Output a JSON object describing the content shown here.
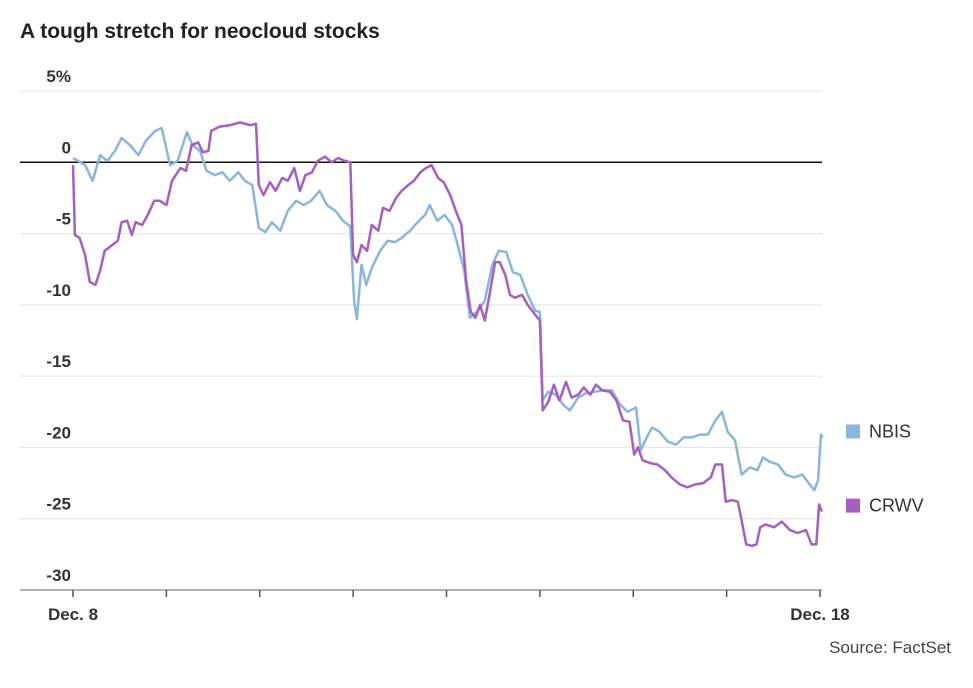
{
  "chart_data": {
    "type": "line",
    "title": "A tough stretch for neocloud stocks",
    "source": "Source: FactSet",
    "xlim": [
      0,
      8
    ],
    "xticks": [
      0,
      1,
      2,
      3,
      4,
      5,
      6,
      7,
      8
    ],
    "xlabels": [
      {
        "value": 0,
        "label": "Dec. 8"
      },
      {
        "value": 8,
        "label": "Dec. 18"
      }
    ],
    "ylim": [
      -30,
      5
    ],
    "yticks": [
      {
        "value": 5,
        "label": "5%"
      },
      0,
      -5,
      -10,
      -15,
      -20,
      -25,
      -30
    ],
    "grid": true,
    "series": [
      {
        "name": "NBIS",
        "color": "#8ab6de",
        "x": [
          0,
          0.13,
          0.21,
          0.29,
          0.37,
          0.45,
          0.52,
          0.61,
          0.7,
          0.78,
          0.88,
          0.95,
          1.04,
          1.12,
          1.22,
          1.28,
          1.36,
          1.43,
          1.52,
          1.6,
          1.68,
          1.77,
          1.84,
          1.92,
          1.99,
          2.06,
          2.13,
          2.22,
          2.3,
          2.39,
          2.47,
          2.55,
          2.64,
          2.72,
          2.81,
          2.89,
          2.97,
          3.01,
          3.04,
          3.09,
          3.14,
          3.2,
          3.29,
          3.37,
          3.45,
          3.52,
          3.61,
          3.69,
          3.77,
          3.82,
          3.9,
          3.98,
          4.06,
          4.12,
          4.19,
          4.25,
          4.34,
          4.41,
          4.49,
          4.56,
          4.64,
          4.71,
          4.79,
          4.87,
          4.95,
          5.0,
          5.03,
          5.09,
          5.17,
          5.25,
          5.32,
          5.41,
          5.49,
          5.58,
          5.67,
          5.77,
          5.86,
          5.94,
          6.03,
          6.08,
          6.13,
          6.2,
          6.28,
          6.37,
          6.46,
          6.54,
          6.63,
          6.71,
          6.8,
          6.88,
          6.95,
          7.01,
          7.09,
          7.16,
          7.25,
          7.33,
          7.39,
          7.46,
          7.55,
          7.63,
          7.72,
          7.81,
          7.89,
          7.94,
          7.98,
          8.01,
          8.03
        ],
        "values": [
          0.3,
          -0.2,
          -1.3,
          0.5,
          0.1,
          0.8,
          1.7,
          1.2,
          0.5,
          1.5,
          2.2,
          2.4,
          -0.2,
          0.1,
          2.1,
          1.2,
          0.8,
          -0.6,
          -0.9,
          -0.7,
          -1.3,
          -0.7,
          -1.3,
          -1.6,
          -4.6,
          -4.9,
          -4.2,
          -4.8,
          -3.4,
          -2.7,
          -3.0,
          -2.7,
          -2.0,
          -3.0,
          -3.4,
          -4.1,
          -4.5,
          -9.7,
          -11.0,
          -7.2,
          -8.6,
          -7.4,
          -6.2,
          -5.5,
          -5.6,
          -5.3,
          -4.8,
          -4.2,
          -3.7,
          -3.0,
          -4.1,
          -3.7,
          -4.4,
          -5.8,
          -7.6,
          -10.9,
          -10.4,
          -9.7,
          -7.2,
          -6.2,
          -6.3,
          -7.7,
          -7.9,
          -9.3,
          -10.4,
          -10.5,
          -16.7,
          -16.1,
          -16.3,
          -17.0,
          -17.4,
          -16.5,
          -16.2,
          -16.1,
          -16.0,
          -16.0,
          -17.0,
          -17.5,
          -17.2,
          -20.2,
          -19.5,
          -18.6,
          -18.9,
          -19.6,
          -19.8,
          -19.3,
          -19.3,
          -19.1,
          -19.1,
          -18.1,
          -17.5,
          -18.9,
          -19.5,
          -21.9,
          -21.4,
          -21.6,
          -20.7,
          -21.0,
          -21.2,
          -21.9,
          -22.1,
          -21.9,
          -22.6,
          -23.0,
          -22.3,
          -19.1,
          -19.3
        ]
      },
      {
        "name": "CRWV",
        "color": "#a55fc0",
        "x": [
          0,
          0.02,
          0.07,
          0.13,
          0.18,
          0.24,
          0.29,
          0.34,
          0.42,
          0.48,
          0.52,
          0.58,
          0.63,
          0.67,
          0.74,
          0.8,
          0.87,
          0.93,
          1.0,
          1.06,
          1.15,
          1.21,
          1.27,
          1.34,
          1.39,
          1.45,
          1.48,
          1.57,
          1.68,
          1.79,
          1.9,
          1.96,
          1.99,
          2.04,
          2.11,
          2.17,
          2.24,
          2.3,
          2.37,
          2.43,
          2.49,
          2.56,
          2.62,
          2.7,
          2.77,
          2.84,
          2.91,
          2.97,
          3.0,
          3.04,
          3.09,
          3.15,
          3.2,
          3.27,
          3.32,
          3.39,
          3.46,
          3.52,
          3.59,
          3.65,
          3.72,
          3.78,
          3.84,
          3.91,
          3.97,
          4.04,
          4.1,
          4.16,
          4.21,
          4.26,
          4.31,
          4.36,
          4.41,
          4.46,
          4.52,
          4.57,
          4.63,
          4.68,
          4.73,
          4.81,
          4.87,
          4.95,
          5.0,
          5.03,
          5.09,
          5.15,
          5.21,
          5.28,
          5.34,
          5.41,
          5.47,
          5.54,
          5.6,
          5.67,
          5.75,
          5.82,
          5.89,
          5.96,
          6.01,
          6.05,
          6.1,
          6.18,
          6.26,
          6.34,
          6.41,
          6.5,
          6.58,
          6.66,
          6.75,
          6.83,
          6.88,
          6.95,
          6.99,
          7.06,
          7.12,
          7.16,
          7.21,
          7.27,
          7.32,
          7.36,
          7.42,
          7.51,
          7.59,
          7.68,
          7.76,
          7.85,
          7.91,
          7.96,
          7.99,
          8.02
        ],
        "values": [
          -0.2,
          -5.1,
          -5.3,
          -6.5,
          -8.4,
          -8.6,
          -7.6,
          -6.2,
          -5.8,
          -5.5,
          -4.2,
          -4.1,
          -5.1,
          -4.2,
          -4.4,
          -3.7,
          -2.7,
          -2.7,
          -3.0,
          -1.3,
          -0.4,
          -0.6,
          1.2,
          1.4,
          0.7,
          0.8,
          2.2,
          2.5,
          2.6,
          2.8,
          2.6,
          2.7,
          -1.6,
          -2.3,
          -1.4,
          -2.0,
          -1.1,
          -1.3,
          -0.4,
          -2.0,
          -0.9,
          -0.7,
          0.1,
          0.4,
          0.0,
          0.3,
          0.1,
          0.0,
          -6.5,
          -7.0,
          -5.8,
          -6.2,
          -4.4,
          -4.8,
          -3.2,
          -3.4,
          -2.5,
          -2.0,
          -1.6,
          -1.3,
          -0.7,
          -0.4,
          -0.2,
          -1.1,
          -1.4,
          -2.3,
          -3.4,
          -4.4,
          -8.3,
          -10.5,
          -10.9,
          -10.0,
          -11.1,
          -9.3,
          -7.0,
          -7.0,
          -7.9,
          -9.3,
          -9.5,
          -9.3,
          -10.0,
          -10.7,
          -11.1,
          -17.4,
          -16.8,
          -15.6,
          -16.7,
          -15.4,
          -16.5,
          -16.3,
          -15.8,
          -16.3,
          -15.6,
          -16.0,
          -16.1,
          -16.7,
          -18.1,
          -18.2,
          -20.5,
          -20.0,
          -20.9,
          -21.1,
          -21.2,
          -21.6,
          -22.1,
          -22.6,
          -22.8,
          -22.6,
          -22.5,
          -22.1,
          -21.2,
          -21.2,
          -23.8,
          -23.7,
          -23.8,
          -25.1,
          -26.8,
          -26.9,
          -26.8,
          -25.6,
          -25.4,
          -25.6,
          -25.2,
          -25.8,
          -26.0,
          -25.8,
          -26.8,
          -26.8,
          -24.0,
          -24.5
        ]
      }
    ]
  }
}
